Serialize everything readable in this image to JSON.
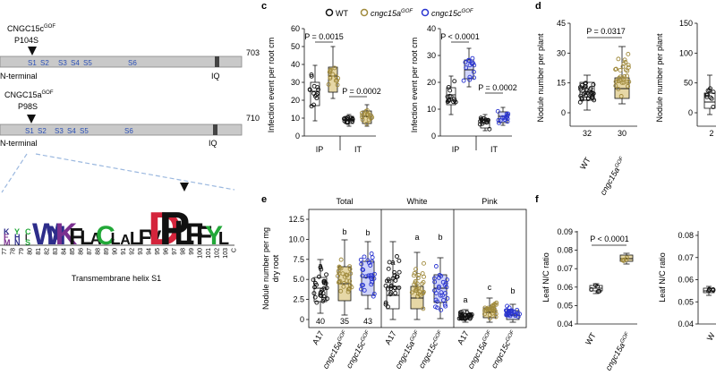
{
  "panel_a": {
    "protein1_name": "CNGC15c",
    "protein1_sup": "GOF",
    "protein1_mut": "P104S",
    "protein1_len": "703",
    "protein2_name": "CNGC15a",
    "protein2_sup": "GOF",
    "protein2_mut": "P98S",
    "protein2_len": "710",
    "nterm": "N-terminal",
    "segments": [
      "S1",
      "S2",
      "S3",
      "S4",
      "S5",
      "S6"
    ],
    "iq": "IQ",
    "logo_caption": "Transmembrane helix S1",
    "logo_ticks": [
      "77",
      "78",
      "79",
      "80",
      "81",
      "82",
      "83",
      "84",
      "85",
      "86",
      "87",
      "88",
      "89",
      "90",
      "91",
      "92",
      "93",
      "94",
      "95",
      "96",
      "97",
      "98",
      "99",
      "100",
      "101",
      "102",
      "103",
      "C"
    ],
    "logo_letters": [
      "W",
      "N",
      "K",
      "F",
      "L",
      "A",
      "C",
      "L",
      "A",
      "L",
      "F",
      "V",
      "D",
      "P",
      "L",
      "F",
      "F",
      "Y",
      "L"
    ],
    "logo_colors": [
      "#2d2d8a",
      "#2d2d8a",
      "#7a2f8f",
      "#111111",
      "#111111",
      "#111111",
      "#22a838",
      "#111111",
      "#111111",
      "#111111",
      "#111111",
      "#111111",
      "#d4243b",
      "#111111",
      "#111111",
      "#111111",
      "#111111",
      "#22a838",
      "#111111"
    ]
  },
  "panel_c": {
    "letter": "c",
    "legend": [
      "WT",
      "cngc15a",
      "GOF",
      "cngc15c",
      "GOF"
    ],
    "colors": {
      "wt": "#111111",
      "a": "#a08a3c",
      "c": "#2a35d0"
    },
    "ylabel": "Infection event per root cm",
    "left": {
      "p1": "P = 0.0015",
      "p2": "P = 0.0002",
      "yticks": [
        "0",
        "10",
        "20",
        "30",
        "40",
        "50",
        "60"
      ],
      "x": [
        "IP",
        "IT"
      ]
    },
    "right": {
      "p1": "P < 0.0001",
      "p2": "P = 0.0002",
      "yticks": [
        "0",
        "10",
        "20",
        "30",
        "40"
      ],
      "x": [
        "IP",
        "IT"
      ]
    }
  },
  "panel_d": {
    "letter": "d",
    "ylabel": "Nodule number per plant",
    "p": "P = 0.0317",
    "yticks": [
      "0",
      "15",
      "30",
      "45"
    ],
    "n": [
      "32",
      "30"
    ],
    "x": [
      "WT",
      "cngc15a"
    ],
    "x_sup": "GOF",
    "right_ylabel": "Nodule number per plant",
    "right_yticks": [
      "0",
      "50",
      "100",
      "150"
    ],
    "right_n": "2"
  },
  "panel_e": {
    "letter": "e",
    "ylabel": "Nodule number per mg dry root",
    "groups": [
      "Total",
      "White",
      "Pink"
    ],
    "yticks": [
      "0",
      "2.5",
      "5.0",
      "7.5",
      "10.0",
      "12.5"
    ],
    "letters_total": [
      "a",
      "b",
      "b"
    ],
    "letters_white": [
      "a",
      "a",
      "b"
    ],
    "letters_pink": [
      "a",
      "c",
      "b"
    ],
    "n": [
      "40",
      "35",
      "43"
    ],
    "x": [
      "A17",
      "cngc15a",
      "cngc15c"
    ],
    "x_sup": "GOF"
  },
  "panel_f": {
    "letter": "f",
    "ylabel": "Leaf N/C ratio",
    "p": "P < 0.0001",
    "yticks": [
      "0.04",
      "0.05",
      "0.06",
      "0.07",
      "0.08",
      "0.09"
    ],
    "x": [
      "WT",
      "cngc15a"
    ],
    "x_sup": "GOF",
    "right_yticks": [
      "0.04",
      "0.05",
      "0.06",
      "0.07",
      "0.08"
    ],
    "right_x": "W"
  }
}
